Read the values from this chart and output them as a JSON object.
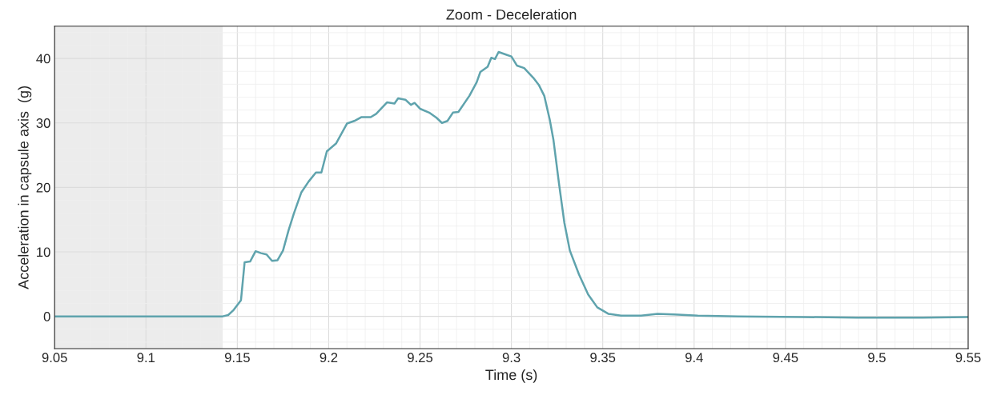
{
  "chart_data": {
    "type": "line",
    "title": "Zoom - Deceleration",
    "xlabel": "Time (s)",
    "ylabel": "Acceleration in capsule axis  (g)",
    "xlim": [
      9.05,
      9.55
    ],
    "xticks": [
      9.05,
      9.1,
      9.15,
      9.2,
      9.25,
      9.3,
      9.35,
      9.4,
      9.45,
      9.5,
      9.55
    ],
    "ylim": [
      -5,
      45
    ],
    "yticks": [
      0,
      10,
      20,
      30,
      40
    ],
    "grid": true,
    "legend": false,
    "bands": [
      {
        "axis": "x",
        "from": 9.05,
        "to": 9.142,
        "color": "#ececec"
      }
    ],
    "series": [
      {
        "color": "#5fa3ad",
        "x": [
          9.05,
          9.142,
          9.145,
          9.148,
          9.152,
          9.154,
          9.157,
          9.16,
          9.163,
          9.166,
          9.169,
          9.172,
          9.175,
          9.178,
          9.181,
          9.185,
          9.189,
          9.193,
          9.196,
          9.199,
          9.204,
          9.21,
          9.214,
          9.218,
          9.223,
          9.226,
          9.229,
          9.232,
          9.236,
          9.238,
          9.242,
          9.245,
          9.247,
          9.25,
          9.255,
          9.259,
          9.262,
          9.265,
          9.268,
          9.271,
          9.277,
          9.281,
          9.283,
          9.287,
          9.289,
          9.291,
          9.293,
          9.297,
          9.3,
          9.303,
          9.307,
          9.312,
          9.315,
          9.318,
          9.321,
          9.323,
          9.326,
          9.329,
          9.332,
          9.337,
          9.342,
          9.347,
          9.353,
          9.36,
          9.371,
          9.38,
          9.389,
          9.402,
          9.424,
          9.459,
          9.489,
          9.525,
          9.55
        ],
        "values": [
          0,
          0,
          0.2,
          1,
          2.5,
          8.4,
          8.5,
          10.1,
          9.8,
          9.6,
          8.6,
          8.7,
          10.2,
          13.3,
          16,
          19.2,
          20.9,
          22.3,
          22.3,
          25.6,
          26.8,
          29.9,
          30.3,
          30.9,
          30.9,
          31.4,
          32.3,
          33.2,
          33.0,
          33.8,
          33.6,
          32.8,
          33.1,
          32.2,
          31.6,
          30.8,
          30.0,
          30.3,
          31.6,
          31.7,
          34.2,
          36.3,
          37.9,
          38.7,
          40.1,
          39.9,
          41,
          40.6,
          40.3,
          38.9,
          38.5,
          37,
          35.9,
          34.2,
          30.5,
          27.4,
          20.7,
          14.5,
          10.2,
          6.5,
          3.4,
          1.4,
          0.4,
          0.1,
          0.1,
          0.4,
          0.3,
          0.1,
          0,
          -0.1,
          -0.2,
          -0.2,
          -0.1
        ]
      }
    ]
  }
}
